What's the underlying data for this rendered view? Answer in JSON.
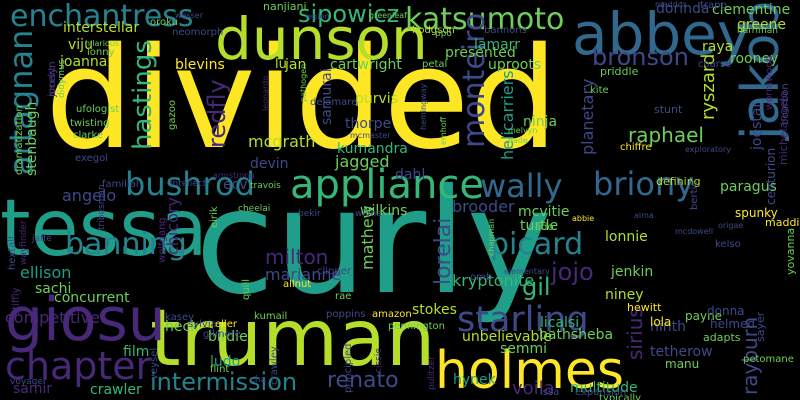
{
  "palette": {
    "background": "#000000",
    "yellow": "#fde725",
    "lime": "#b5de2b",
    "green": "#6ece58",
    "seagreen": "#35b779",
    "teal": "#1f9e89",
    "tealblue": "#26828e",
    "blue": "#31688e",
    "indigo": "#3e4989",
    "purple": "#482878",
    "darkpurple": "#440154"
  },
  "words": [
    {
      "id": "w-divided",
      "text": "divided",
      "color": "yellow"
    },
    {
      "id": "w-curly",
      "text": "curly",
      "color": "teal"
    },
    {
      "id": "w-tessa",
      "text": "tessa",
      "color": "teal"
    },
    {
      "id": "w-truman",
      "text": "truman",
      "color": "lime"
    },
    {
      "id": "w-dunson",
      "text": "dunson",
      "color": "lime"
    },
    {
      "id": "w-abbey",
      "text": "abbey",
      "color": "blue"
    },
    {
      "id": "w-holmes",
      "text": "holmes",
      "color": "yellow"
    },
    {
      "id": "w-giosu",
      "text": "giosu",
      "color": "purple"
    },
    {
      "id": "w-jakoby",
      "text": "jakoby",
      "color": "blue"
    },
    {
      "id": "w-appliance",
      "text": "appliance",
      "color": "seagreen"
    },
    {
      "id": "w-bushrod",
      "text": "bushrod",
      "color": "tealblue"
    },
    {
      "id": "w-enchantress",
      "text": "enchantress",
      "color": "tealblue"
    },
    {
      "id": "w-katsumoto",
      "text": "katsumoto",
      "color": "green"
    },
    {
      "id": "w-chapter",
      "text": "chapter",
      "color": "purple"
    },
    {
      "id": "w-artagnan",
      "text": "artagnan",
      "color": "tealblue"
    },
    {
      "id": "w-wally",
      "text": "wally",
      "color": "blue"
    },
    {
      "id": "w-briony",
      "text": "briony",
      "color": "blue"
    },
    {
      "id": "w-starling",
      "text": "starling",
      "color": "indigo"
    },
    {
      "id": "w-banning",
      "text": "banning",
      "color": "tealblue"
    },
    {
      "id": "w-bronson",
      "text": "bronson",
      "color": "indigo"
    },
    {
      "id": "w-monteiro",
      "text": "monteiro",
      "color": "indigo"
    },
    {
      "id": "w-hastings",
      "text": "hastings",
      "color": "seagreen"
    },
    {
      "id": "w-redfly",
      "text": "redfly",
      "color": "purple"
    },
    {
      "id": "w-picard",
      "text": "picard",
      "color": "tealblue"
    },
    {
      "id": "w-intermission",
      "text": "intermission",
      "color": "tealblue"
    },
    {
      "id": "w-renato",
      "text": "renato",
      "color": "indigo"
    },
    {
      "id": "w-sipowicz",
      "text": "sipowicz",
      "color": "seagreen"
    },
    {
      "id": "w-lorelai",
      "text": "lorelai",
      "color": "indigo"
    },
    {
      "id": "w-jojo",
      "text": "jojo",
      "color": "purple"
    },
    {
      "id": "w-gil",
      "text": "gil",
      "color": "seagreen"
    },
    {
      "id": "w-sirius",
      "text": "sirius",
      "color": "purple"
    },
    {
      "id": "w-rayburn",
      "text": "rayburn",
      "color": "indigo"
    },
    {
      "id": "w-mcgrath",
      "text": "mcgrath",
      "color": "lime"
    },
    {
      "id": "w-raphael",
      "text": "raphael",
      "color": "green"
    },
    {
      "id": "w-blevins",
      "text": "blevins",
      "color": "yellow"
    },
    {
      "id": "w-kumandra",
      "text": "kumandra",
      "color": "seagreen"
    },
    {
      "id": "w-thorpe",
      "text": "thorpe",
      "color": "indigo"
    },
    {
      "id": "w-jagged",
      "text": "jagged",
      "color": "green"
    },
    {
      "id": "w-uproots",
      "text": "uproots",
      "color": "green"
    },
    {
      "id": "w-presented",
      "text": "presented",
      "color": "green"
    },
    {
      "id": "w-purvis",
      "text": "purvis",
      "color": "lime"
    },
    {
      "id": "w-ninja",
      "text": "ninja",
      "color": "green"
    },
    {
      "id": "w-cartwright",
      "text": "cartwright",
      "color": "green"
    },
    {
      "id": "w-lamarr",
      "text": "lamarr",
      "color": "seagreen"
    },
    {
      "id": "w-jan",
      "text": "jan",
      "color": "lime"
    },
    {
      "id": "w-lu",
      "text": "lu",
      "color": "lime"
    },
    {
      "id": "w-samurai",
      "text": "samurai",
      "color": "indigo"
    },
    {
      "id": "w-helicarriers",
      "text": "helicarriers",
      "color": "teal"
    },
    {
      "id": "w-planetary",
      "text": "planetary",
      "color": "indigo"
    },
    {
      "id": "w-ryszard",
      "text": "ryszard",
      "color": "lime"
    },
    {
      "id": "w-joestar",
      "text": "joestar",
      "color": "indigo"
    },
    {
      "id": "w-greene",
      "text": "greene",
      "color": "lime"
    },
    {
      "id": "w-raya",
      "text": "raya",
      "color": "lime"
    },
    {
      "id": "w-rooney",
      "text": "rooney",
      "color": "green"
    },
    {
      "id": "w-dorinda",
      "text": "dorinda",
      "color": "indigo"
    },
    {
      "id": "w-clementine",
      "text": "clementine",
      "color": "green"
    },
    {
      "id": "w-joanna",
      "text": "joanna",
      "color": "lime"
    },
    {
      "id": "w-viju",
      "text": "viju",
      "color": "lime"
    },
    {
      "id": "w-interstellar",
      "text": "interstellar",
      "color": "lime"
    },
    {
      "id": "w-nanjiani",
      "text": "nanjiani",
      "color": "green"
    },
    {
      "id": "w-trapp",
      "text": "trapp",
      "color": "indigo"
    },
    {
      "id": "w-stenbaugh",
      "text": "stenbaugh",
      "color": "green"
    },
    {
      "id": "w-angelo",
      "text": "angelo",
      "color": "indigo"
    },
    {
      "id": "w-ellison",
      "text": "ellison",
      "color": "teal"
    },
    {
      "id": "w-sachi",
      "text": "sachi",
      "color": "green"
    },
    {
      "id": "w-concurrent",
      "text": "concurrent",
      "color": "green"
    },
    {
      "id": "w-competitive",
      "text": "competitive",
      "color": "purple"
    },
    {
      "id": "w-samir",
      "text": "samir",
      "color": "purple"
    },
    {
      "id": "w-crawler",
      "text": "crawler",
      "color": "seagreen"
    },
    {
      "id": "w-film",
      "text": "film",
      "color": "seagreen"
    },
    {
      "id": "w-heck",
      "text": "heck",
      "color": "green"
    },
    {
      "id": "w-birdie",
      "text": "birdie",
      "color": "green"
    },
    {
      "id": "w-ludo",
      "text": "ludo",
      "color": "teal"
    },
    {
      "id": "w-milton",
      "text": "milton",
      "color": "purple"
    },
    {
      "id": "w-marianne",
      "text": "marianne",
      "color": "indigo"
    },
    {
      "id": "w-mathew",
      "text": "mathew",
      "color": "green"
    },
    {
      "id": "w-wilkins",
      "text": "wilkins",
      "color": "green"
    },
    {
      "id": "w-dahl",
      "text": "dahl",
      "color": "indigo"
    },
    {
      "id": "w-ecv",
      "text": "ecv",
      "color": "indigo"
    },
    {
      "id": "w-devin",
      "text": "devin",
      "color": "indigo"
    },
    {
      "id": "w-stokes",
      "text": "stokes",
      "color": "lime"
    },
    {
      "id": "w-unbelievable",
      "text": "unbelievable",
      "color": "lime"
    },
    {
      "id": "w-bathsheba",
      "text": "bathsheba",
      "color": "green"
    },
    {
      "id": "w-semmi",
      "text": "semmi",
      "color": "green"
    },
    {
      "id": "w-hynek",
      "text": "hynek",
      "color": "teal"
    },
    {
      "id": "w-licalsi",
      "text": "licalsi",
      "color": "seagreen"
    },
    {
      "id": "w-kryptonite",
      "text": "kryptonite",
      "color": "seagreen"
    },
    {
      "id": "w-brooder",
      "text": "brooder",
      "color": "indigo"
    },
    {
      "id": "w-turtle",
      "text": "turtle",
      "color": "green"
    },
    {
      "id": "w-mcvitie",
      "text": "mcvitie",
      "color": "green"
    },
    {
      "id": "w-lonnie",
      "text": "lonnie",
      "color": "lime"
    },
    {
      "id": "w-jenkin",
      "text": "jenkin",
      "color": "green"
    },
    {
      "id": "w-niney",
      "text": "niney",
      "color": "lime"
    },
    {
      "id": "w-ninth",
      "text": "ninth",
      "color": "indigo"
    },
    {
      "id": "w-tetherow",
      "text": "tetherow",
      "color": "indigo"
    },
    {
      "id": "w-manu",
      "text": "manu",
      "color": "green"
    },
    {
      "id": "w-paragus",
      "text": "paragus",
      "color": "green"
    },
    {
      "id": "w-chicory",
      "text": "chicory",
      "color": "purple"
    },
    {
      "id": "w-voila",
      "text": "voila",
      "color": "purple"
    },
    {
      "id": "w-multitude",
      "text": "multitude",
      "color": "seagreen"
    },
    {
      "id": "w-payne",
      "text": "payne",
      "color": "green"
    },
    {
      "id": "w-helmed",
      "text": "helmed",
      "color": "indigo"
    },
    {
      "id": "w-donna",
      "text": "donna",
      "color": "indigo"
    },
    {
      "id": "w-lola",
      "text": "lola",
      "color": "yellow"
    },
    {
      "id": "w-hewitt",
      "text": "hewitt",
      "color": "yellow"
    },
    {
      "id": "w-adapts",
      "text": "adapts",
      "color": "green"
    },
    {
      "id": "w-spunky",
      "text": "spunky",
      "color": "yellow"
    },
    {
      "id": "w-maddie",
      "text": "maddie",
      "color": "yellow"
    },
    {
      "id": "w-defining",
      "text": "defining",
      "color": "lime"
    },
    {
      "id": "w-chiffre",
      "text": "chiffre",
      "color": "yellow"
    },
    {
      "id": "w-stunt",
      "text": "stunt",
      "color": "indigo"
    },
    {
      "id": "w-kite",
      "text": "kite",
      "color": "green"
    },
    {
      "id": "w-priddle",
      "text": "priddle",
      "color": "green"
    },
    {
      "id": "w-petal",
      "text": "petal",
      "color": "green"
    },
    {
      "id": "w-hodgson",
      "text": "hodgson",
      "color": "lime"
    },
    {
      "id": "w-bannons",
      "text": "bannons",
      "color": "indigo"
    },
    {
      "id": "w-ppo",
      "text": "ppo",
      "color": "green"
    },
    {
      "id": "w-maddox",
      "text": "maddox",
      "color": "indigo"
    },
    {
      "id": "w-harriman",
      "text": "harriman",
      "color": "green"
    },
    {
      "id": "w-coarse",
      "text": "coarse",
      "color": "indigo"
    },
    {
      "id": "w-bourbon",
      "text": "bourbon",
      "color": "indigo"
    },
    {
      "id": "w-wormwood",
      "text": "wormwood",
      "color": "purple"
    },
    {
      "id": "w-michelangelo",
      "text": "michelangelo",
      "color": "purple"
    },
    {
      "id": "w-centurion",
      "text": "centurion",
      "color": "indigo"
    },
    {
      "id": "w-yovanna",
      "text": "yovanna",
      "color": "green"
    },
    {
      "id": "w-sayer",
      "text": "sayer",
      "color": "indigo"
    },
    {
      "id": "w-petomane",
      "text": "petomane",
      "color": "green"
    },
    {
      "id": "w-typically",
      "text": "typically",
      "color": "green"
    },
    {
      "id": "w-issa",
      "text": "issa",
      "color": "indigo"
    },
    {
      "id": "w-expansion",
      "text": "expansion",
      "color": "indigo"
    },
    {
      "id": "w-pulitzer",
      "text": "pulitzer",
      "color": "purple"
    },
    {
      "id": "w-cissie",
      "text": "cissie",
      "color": "purple"
    },
    {
      "id": "w-principled",
      "text": "principled",
      "color": "indigo"
    },
    {
      "id": "w-poppins",
      "text": "poppins",
      "color": "indigo"
    },
    {
      "id": "w-amazon",
      "text": "amazon",
      "color": "yellow"
    },
    {
      "id": "w-rae",
      "text": "rae",
      "color": "green"
    },
    {
      "id": "w-allnut",
      "text": "allnut",
      "color": "yellow"
    },
    {
      "id": "w-clipper",
      "text": "clipper",
      "color": "indigo"
    },
    {
      "id": "w-pennington",
      "text": "pennington",
      "color": "green"
    },
    {
      "id": "w-eller",
      "text": "eller",
      "color": "yellow"
    },
    {
      "id": "w-kumail",
      "text": "kumail",
      "color": "green"
    },
    {
      "id": "w-kasey",
      "text": "kasey",
      "color": "indigo"
    },
    {
      "id": "w-sylvia",
      "text": "sylvia",
      "color": "indigo"
    },
    {
      "id": "w-gilmore",
      "text": "gilmore",
      "color": "indigo"
    },
    {
      "id": "w-flint",
      "text": "flint",
      "color": "green"
    },
    {
      "id": "w-veysel",
      "text": "veysel",
      "color": "indigo"
    },
    {
      "id": "w-crawley",
      "text": "crawley",
      "color": "indigo"
    },
    {
      "id": "w-cha",
      "text": "cha",
      "color": "indigo"
    },
    {
      "id": "w-quill",
      "text": "quill",
      "color": "green"
    },
    {
      "id": "w-eirik",
      "text": "eirik",
      "color": "green"
    },
    {
      "id": "w-bekir",
      "text": "bekir",
      "color": "indigo"
    },
    {
      "id": "w-wilma",
      "text": "wilma",
      "color": "indigo"
    },
    {
      "id": "w-cheelai",
      "text": "cheelai",
      "color": "green"
    },
    {
      "id": "w-travois",
      "text": "travois",
      "color": "green"
    },
    {
      "id": "w-intellect",
      "text": "intellect",
      "color": "indigo"
    },
    {
      "id": "w-familial",
      "text": "familial",
      "color": "indigo"
    },
    {
      "id": "w-tribesman",
      "text": "tribesman",
      "color": "indigo"
    },
    {
      "id": "w-wolfgang",
      "text": "wolfgang",
      "color": "purple"
    },
    {
      "id": "w-jaffe",
      "text": "jaffe",
      "color": "indigo"
    },
    {
      "id": "w-hextall",
      "text": "hextall",
      "color": "indigo"
    },
    {
      "id": "w-stiffly",
      "text": "stiffly",
      "color": "purple"
    },
    {
      "id": "w-voyager",
      "text": "voyager",
      "color": "indigo"
    },
    {
      "id": "w-wayfinder",
      "text": "wayfinder",
      "color": "purple"
    },
    {
      "id": "w-dramatization",
      "text": "dramatization",
      "color": "green"
    },
    {
      "id": "w-jocelyn",
      "text": "jocelyn",
      "color": "indigo"
    },
    {
      "id": "w-didymus",
      "text": "didymus",
      "color": "green"
    },
    {
      "id": "w-smart",
      "text": "smart",
      "color": "purple"
    },
    {
      "id": "w-lonny",
      "text": "lonny",
      "color": "green"
    },
    {
      "id": "w-ufologist",
      "text": "ufologist",
      "color": "green"
    },
    {
      "id": "w-twisting",
      "text": "twisting",
      "color": "green"
    },
    {
      "id": "w-gazoo",
      "text": "gazoo",
      "color": "green"
    },
    {
      "id": "w-clarke",
      "text": "clarke",
      "color": "green"
    },
    {
      "id": "w-exegol",
      "text": "exegol",
      "color": "indigo"
    },
    {
      "id": "w-hilarious",
      "text": "hilarious",
      "color": "green"
    },
    {
      "id": "w-oroku",
      "text": "oroku",
      "color": "green"
    },
    {
      "id": "w-neomorph",
      "text": "neomorph",
      "color": "indigo"
    },
    {
      "id": "w-wasser",
      "text": "wasser",
      "color": "indigo"
    },
    {
      "id": "w-legion",
      "text": "legion",
      "color": "indigo"
    },
    {
      "id": "w-greenleaf",
      "text": "greenleaf",
      "color": "green"
    },
    {
      "id": "w-pathogen",
      "text": "pathogen",
      "color": "green"
    },
    {
      "id": "w-delamare",
      "text": "delamare",
      "color": "indigo"
    },
    {
      "id": "w-armstrong",
      "text": "armstrong",
      "color": "purple"
    },
    {
      "id": "w-leonardo",
      "text": "leonardo",
      "color": "purple"
    },
    {
      "id": "w-mcmaster",
      "text": "mcmaster",
      "color": "indigo"
    },
    {
      "id": "w-hemingway",
      "text": "hemingway",
      "color": "indigo"
    },
    {
      "id": "w-emhoff",
      "text": "emhoff",
      "color": "green"
    },
    {
      "id": "w-melvyn",
      "text": "melvyn",
      "color": "green"
    },
    {
      "id": "w-eade",
      "text": "eade",
      "color": "green"
    },
    {
      "id": "w-exploratory",
      "text": "exploratory",
      "color": "indigo"
    },
    {
      "id": "w-abbie",
      "text": "abbie",
      "color": "yellow"
    },
    {
      "id": "w-alma",
      "text": "alma",
      "color": "indigo"
    },
    {
      "id": "w-kelso",
      "text": "kelso",
      "color": "indigo"
    },
    {
      "id": "w-mcdowell",
      "text": "mcdowell",
      "color": "indigo"
    },
    {
      "id": "w-origae",
      "text": "origae",
      "color": "indigo"
    },
    {
      "id": "w-elementary",
      "text": "elementary",
      "color": "indigo"
    },
    {
      "id": "w-chapman",
      "text": "chapman",
      "color": "green"
    },
    {
      "id": "w-ado",
      "text": "ado",
      "color": "green"
    },
    {
      "id": "w-omb",
      "text": "omb",
      "color": "indigo"
    },
    {
      "id": "w-bertie",
      "text": "bertie",
      "color": "indigo"
    }
  ]
}
